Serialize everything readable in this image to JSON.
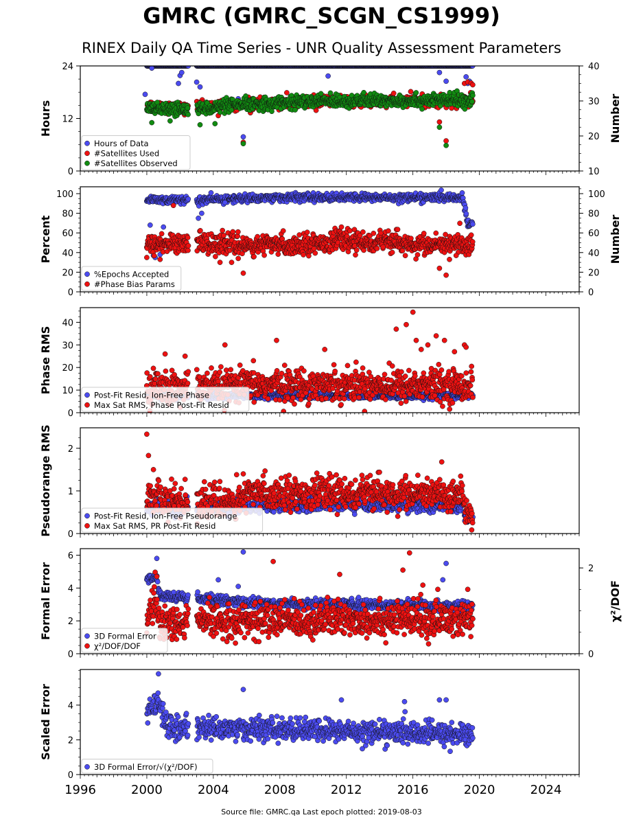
{
  "title": "GMRC (GMRC_SCGN_CS1999)",
  "subtitle": "RINEX Daily QA Time Series - UNR Quality Assessment Parameters",
  "footer": "Source file: GMRC.qa Last epoch plotted: 2019-08-03",
  "colors": {
    "blue": "#4b4bf0",
    "red": "#ee1111",
    "green": "#118c11",
    "edge": "#111111"
  },
  "chart_data": [
    {
      "type": "scatter",
      "ylabel": "Hours",
      "y2label": "Number",
      "xlim": [
        1996,
        2026
      ],
      "ylim": [
        0,
        24
      ],
      "y2lim": [
        10,
        40
      ],
      "yticks": [
        0,
        12,
        24
      ],
      "y2ticks": [
        10,
        20,
        30,
        40
      ],
      "series": [
        {
          "name": "Hours of Data",
          "color": "blue",
          "axis": "left",
          "base": [
            [
              2000.0,
              24
            ],
            [
              2019.6,
              24
            ]
          ],
          "noise": 0.0,
          "outliers": [
            [
              1999.9,
              17.5
            ],
            [
              2000.3,
              23.5
            ],
            [
              2002.0,
              21.8
            ],
            [
              2002.1,
              22.5
            ],
            [
              2001.9,
              20
            ],
            [
              2003.0,
              20.3
            ],
            [
              2003.2,
              19.2
            ],
            [
              2005.5,
              16.5
            ],
            [
              2010.9,
              21.7
            ],
            [
              2017.6,
              22.5
            ],
            [
              2018.0,
              20.5
            ],
            [
              2018.6,
              18.0
            ],
            [
              2019.2,
              21.5
            ],
            [
              2019.3,
              20.0
            ],
            [
              2019.4,
              20.5
            ],
            [
              2005.8,
              7.8
            ]
          ],
          "gaps": [
            [
              2002.5,
              2003.0
            ]
          ]
        },
        {
          "name": "#Satellites Used",
          "color": "red",
          "axis": "right",
          "base": [
            [
              2000.0,
              28.2
            ],
            [
              2003.0,
              28.3
            ],
            [
              2005.0,
              29.0
            ],
            [
              2010.0,
              29.8
            ],
            [
              2011.0,
              30.0
            ],
            [
              2019.6,
              30.0
            ]
          ],
          "noise": 0.8,
          "outliers": [
            [
              2004.3,
              25.8
            ],
            [
              2005.8,
              18.2
            ],
            [
              2010.6,
              29.6
            ],
            [
              2017.6,
              24.0
            ],
            [
              2018.0,
              18.6
            ],
            [
              2019.1,
              35.0
            ],
            [
              2019.3,
              35.4
            ],
            [
              2019.5,
              35.1
            ],
            [
              2019.6,
              34.6
            ]
          ],
          "gaps": [
            [
              2002.5,
              2003.0
            ]
          ]
        },
        {
          "name": "#Satellites Observed",
          "color": "green",
          "axis": "right",
          "base": [
            [
              2000.0,
              27.5
            ],
            [
              2003.0,
              27.7
            ],
            [
              2005.0,
              28.6
            ],
            [
              2008.0,
              29.5
            ],
            [
              2011.0,
              30.0
            ],
            [
              2019.6,
              30.2
            ]
          ],
          "noise": 0.9,
          "outliers": [
            [
              2003.2,
              23.2
            ],
            [
              2004.1,
              23.5
            ],
            [
              2005.8,
              17.8
            ],
            [
              2017.6,
              22.5
            ],
            [
              2018.0,
              17.3
            ],
            [
              2000.3,
              23.8
            ],
            [
              2001.4,
              24.3
            ]
          ],
          "gaps": [
            [
              2002.5,
              2003.0
            ]
          ]
        }
      ]
    },
    {
      "type": "scatter",
      "ylabel": "Percent",
      "y2label": "Number",
      "xlim": [
        1996,
        2026
      ],
      "ylim": [
        0,
        107
      ],
      "y2lim": [
        0,
        107
      ],
      "yticks": [
        0,
        20,
        40,
        60,
        80,
        100
      ],
      "y2ticks": [
        0,
        20,
        40,
        60,
        80,
        100
      ],
      "series": [
        {
          "name": "%Epochs Accepted",
          "color": "blue",
          "axis": "left",
          "base": [
            [
              2000.0,
              94
            ],
            [
              2002.5,
              93
            ],
            [
              2003.0,
              93
            ],
            [
              2005.5,
              95
            ],
            [
              2008.0,
              96
            ],
            [
              2019.0,
              96
            ],
            [
              2019.3,
              68
            ],
            [
              2019.6,
              70
            ]
          ],
          "noise": 2.0,
          "outliers": [
            [
              2000.2,
              68
            ],
            [
              2000.4,
              37
            ],
            [
              2000.5,
              35
            ],
            [
              2000.8,
              38
            ],
            [
              2001.0,
              66
            ],
            [
              2003.1,
              75
            ],
            [
              2003.3,
              80
            ],
            [
              2004.7,
              91
            ]
          ],
          "gaps": [
            [
              2002.5,
              2003.0
            ]
          ]
        },
        {
          "name": "#Phase Bias Params",
          "color": "red",
          "axis": "right",
          "base": [
            [
              2000.0,
              48
            ],
            [
              2002.5,
              50
            ],
            [
              2003.0,
              51
            ],
            [
              2006.0,
              47
            ],
            [
              2009.0,
              48
            ],
            [
              2011.5,
              52
            ],
            [
              2014.0,
              51
            ],
            [
              2017.0,
              47
            ],
            [
              2019.6,
              49
            ]
          ],
          "noise": 5.0,
          "outliers": [
            [
              2001.6,
              88
            ],
            [
              2004.4,
              30
            ],
            [
              2005.1,
              30
            ],
            [
              2005.5,
              34
            ],
            [
              2005.8,
              19
            ],
            [
              2017.6,
              24
            ],
            [
              2018.0,
              17
            ],
            [
              2018.2,
              33
            ],
            [
              2018.6,
              37
            ],
            [
              2000.0,
              35
            ],
            [
              2011.7,
              66
            ]
          ],
          "gaps": [
            [
              2002.5,
              2003.0
            ]
          ]
        }
      ]
    },
    {
      "type": "scatter",
      "ylabel": "Phase RMS",
      "xlim": [
        1996,
        2026
      ],
      "ylim": [
        0,
        46.5
      ],
      "yticks": [
        0,
        10,
        20,
        30,
        40
      ],
      "series": [
        {
          "name": "Post-Fit Resid, Ion-Free Phase",
          "color": "blue",
          "axis": "left",
          "base": [
            [
              2000.0,
              7.5
            ],
            [
              2019.6,
              7.5
            ]
          ],
          "noise": 0.7,
          "outliers": [],
          "gaps": [
            [
              2002.5,
              2003.0
            ]
          ]
        },
        {
          "name": "Max Sat RMS, Phase Post-Fit Resid",
          "color": "red",
          "axis": "left",
          "base": [
            [
              2000.0,
              11
            ],
            [
              2002.5,
              11
            ],
            [
              2003.0,
              11
            ],
            [
              2006.0,
              12
            ],
            [
              2012.0,
              12.5
            ],
            [
              2019.6,
              12
            ]
          ],
          "noise": 3.5,
          "outliers": [
            [
              2001.1,
              26
            ],
            [
              2002.3,
              25
            ],
            [
              2004.7,
              30
            ],
            [
              2007.8,
              32
            ],
            [
              2010.7,
              28
            ],
            [
              2015.0,
              37
            ],
            [
              2015.6,
              39
            ],
            [
              2016.0,
              44.5
            ],
            [
              2016.2,
              32
            ],
            [
              2016.5,
              28
            ],
            [
              2016.9,
              30
            ],
            [
              2017.4,
              34
            ],
            [
              2017.9,
              32
            ],
            [
              2019.1,
              30
            ],
            [
              2019.2,
              29
            ],
            [
              2018.5,
              27
            ]
          ],
          "gaps": [
            [
              2002.5,
              2003.0
            ]
          ]
        }
      ]
    },
    {
      "type": "scatter",
      "ylabel": "Pseudorange RMS",
      "xlim": [
        1996,
        2026
      ],
      "ylim": [
        0,
        2.48
      ],
      "yticks": [
        0,
        1,
        2
      ],
      "series": [
        {
          "name": "Post-Fit Resid, Ion-Free Pseudorange",
          "color": "blue",
          "axis": "left",
          "base": [
            [
              2000.0,
              0.6
            ],
            [
              2003.0,
              0.58
            ],
            [
              2006.0,
              0.65
            ],
            [
              2012.0,
              0.7
            ],
            [
              2019.0,
              0.65
            ],
            [
              2019.2,
              0.38
            ],
            [
              2019.6,
              0.36
            ]
          ],
          "noise": 0.08,
          "outliers": [],
          "gaps": [
            [
              2002.5,
              2003.0
            ]
          ]
        },
        {
          "name": "Max Sat RMS, PR Post-Fit Resid",
          "color": "red",
          "axis": "left",
          "base": [
            [
              2000.0,
              0.95
            ],
            [
              2001.0,
              0.8
            ],
            [
              2002.5,
              0.72
            ],
            [
              2003.0,
              0.72
            ],
            [
              2005.5,
              0.75
            ],
            [
              2006.5,
              0.95
            ],
            [
              2012.0,
              0.95
            ],
            [
              2019.0,
              0.9
            ],
            [
              2019.2,
              0.42
            ],
            [
              2019.6,
              0.4
            ]
          ],
          "noise": 0.18,
          "outliers": [
            [
              2000.0,
              2.33
            ],
            [
              2000.1,
              1.83
            ],
            [
              2000.4,
              1.5
            ],
            [
              2002.3,
              1.27
            ],
            [
              2005.4,
              1.38
            ],
            [
              2005.8,
              1.4
            ]
          ],
          "gaps": [
            [
              2002.5,
              2003.0
            ]
          ]
        }
      ]
    },
    {
      "type": "scatter",
      "ylabel": "Formal Error",
      "y2label": "χ²/DOF",
      "xlim": [
        1996,
        2026
      ],
      "ylim": [
        0,
        6.4
      ],
      "y2lim": [
        0,
        2.45
      ],
      "yticks": [
        0,
        2,
        4,
        6
      ],
      "y2ticks": [
        0,
        2
      ],
      "series": [
        {
          "name": "3D Formal Error",
          "color": "blue",
          "axis": "left",
          "base": [
            [
              2000.0,
              4.6
            ],
            [
              2000.6,
              4.6
            ],
            [
              2000.8,
              3.5
            ],
            [
              2002.5,
              3.4
            ],
            [
              2003.0,
              3.4
            ],
            [
              2006.0,
              3.1
            ],
            [
              2012.0,
              3.0
            ],
            [
              2019.6,
              2.9
            ]
          ],
          "noise": 0.15,
          "outliers": [
            [
              2000.6,
              5.8
            ],
            [
              2004.3,
              4.5
            ],
            [
              2005.5,
              4.1
            ],
            [
              2005.8,
              6.2
            ],
            [
              2017.8,
              4.5
            ],
            [
              2018.0,
              5.5
            ]
          ],
          "gaps": [
            [
              2002.5,
              2003.0
            ]
          ]
        },
        {
          "name": "$CHI$/DOF",
          "color": "red",
          "axis": "right",
          "base": [
            [
              2000.0,
              0.75
            ],
            [
              2000.5,
              1.2
            ],
            [
              2000.8,
              0.75
            ],
            [
              2002.5,
              0.72
            ],
            [
              2003.0,
              0.75
            ],
            [
              2012.0,
              0.8
            ],
            [
              2019.6,
              0.78
            ]
          ],
          "noise": 0.2,
          "outliers": [
            [
              2000.5,
              1.9
            ],
            [
              2000.6,
              1.8
            ],
            [
              2007.6,
              2.15
            ],
            [
              2011.6,
              1.85
            ],
            [
              2015.4,
              1.95
            ],
            [
              2015.8,
              2.35
            ],
            [
              2016.6,
              1.6
            ],
            [
              2017.5,
              1.5
            ],
            [
              2019.3,
              1.5
            ]
          ],
          "gaps": [
            [
              2002.5,
              2003.0
            ]
          ]
        }
      ]
    },
    {
      "type": "scatter",
      "ylabel": "Scaled Error",
      "xlim": [
        1996,
        2026
      ],
      "ylim": [
        0,
        6.05
      ],
      "yticks": [
        0,
        2,
        4
      ],
      "xticks": [
        1996,
        2000,
        2004,
        2008,
        2012,
        2016,
        2020,
        2024
      ],
      "series": [
        {
          "name": "3D Formal Error/$SQRT$",
          "color": "blue",
          "axis": "left",
          "base": [
            [
              2000.0,
              3.5
            ],
            [
              2000.7,
              4.2
            ],
            [
              2001.2,
              2.8
            ],
            [
              2002.5,
              2.6
            ],
            [
              2003.0,
              2.7
            ],
            [
              2012.0,
              2.5
            ],
            [
              2019.6,
              2.3
            ]
          ],
          "noise": 0.32,
          "outliers": [
            [
              2000.7,
              5.8
            ],
            [
              2005.8,
              4.9
            ],
            [
              2011.7,
              4.3
            ],
            [
              2015.5,
              4.2
            ],
            [
              2017.6,
              4.3
            ],
            [
              2018.0,
              4.3
            ]
          ],
          "gaps": [
            [
              2002.5,
              2003.0
            ]
          ]
        }
      ]
    }
  ]
}
